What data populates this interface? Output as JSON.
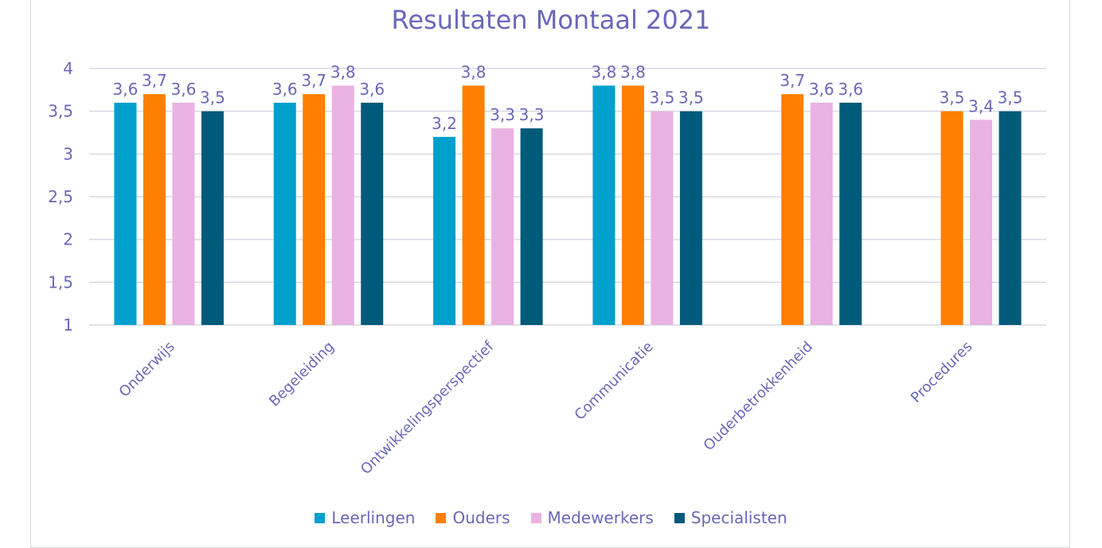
{
  "chart_data": {
    "type": "bar",
    "title": "Resultaten Montaal 2021",
    "categories": [
      "Onderwijs",
      "Begeleiding",
      "Ontwikkelingsperspectief",
      "Communicatie",
      "Ouderbetrokkenheid",
      "Procedures"
    ],
    "series": [
      {
        "name": "Leerlingen",
        "color": "#00a0cc",
        "values": [
          3.6,
          3.6,
          3.2,
          3.8,
          null,
          null
        ],
        "labels": [
          "3,6",
          "3,6",
          "3,2",
          "3,8",
          "",
          ""
        ]
      },
      {
        "name": "Ouders",
        "color": "#ff7f00",
        "values": [
          3.7,
          3.7,
          3.8,
          3.8,
          3.7,
          3.5
        ],
        "labels": [
          "3,7",
          "3,7",
          "3,8",
          "3,8",
          "3,7",
          "3,5"
        ]
      },
      {
        "name": "Medewerkers",
        "color": "#e9b2e2",
        "values": [
          3.6,
          3.8,
          3.3,
          3.5,
          3.6,
          3.4
        ],
        "labels": [
          "3,6",
          "3,8",
          "3,3",
          "3,5",
          "3,6",
          "3,4"
        ]
      },
      {
        "name": "Specialisten",
        "color": "#005a7a",
        "values": [
          3.5,
          3.6,
          3.3,
          3.5,
          3.6,
          3.5
        ],
        "labels": [
          "3,5",
          "3,6",
          "3,3",
          "3,5",
          "3,6",
          "3,5"
        ]
      }
    ],
    "ylim": [
      1,
      4
    ],
    "yticks": [
      1,
      1.5,
      2,
      2.5,
      3,
      3.5,
      4
    ],
    "ytick_labels": [
      "1",
      "1,5",
      "2",
      "2,5",
      "3",
      "3,5",
      "4"
    ],
    "grid": true,
    "legend_position": "bottom",
    "text_color": "#6a67b8",
    "grid_color": "#d9d9e6"
  }
}
